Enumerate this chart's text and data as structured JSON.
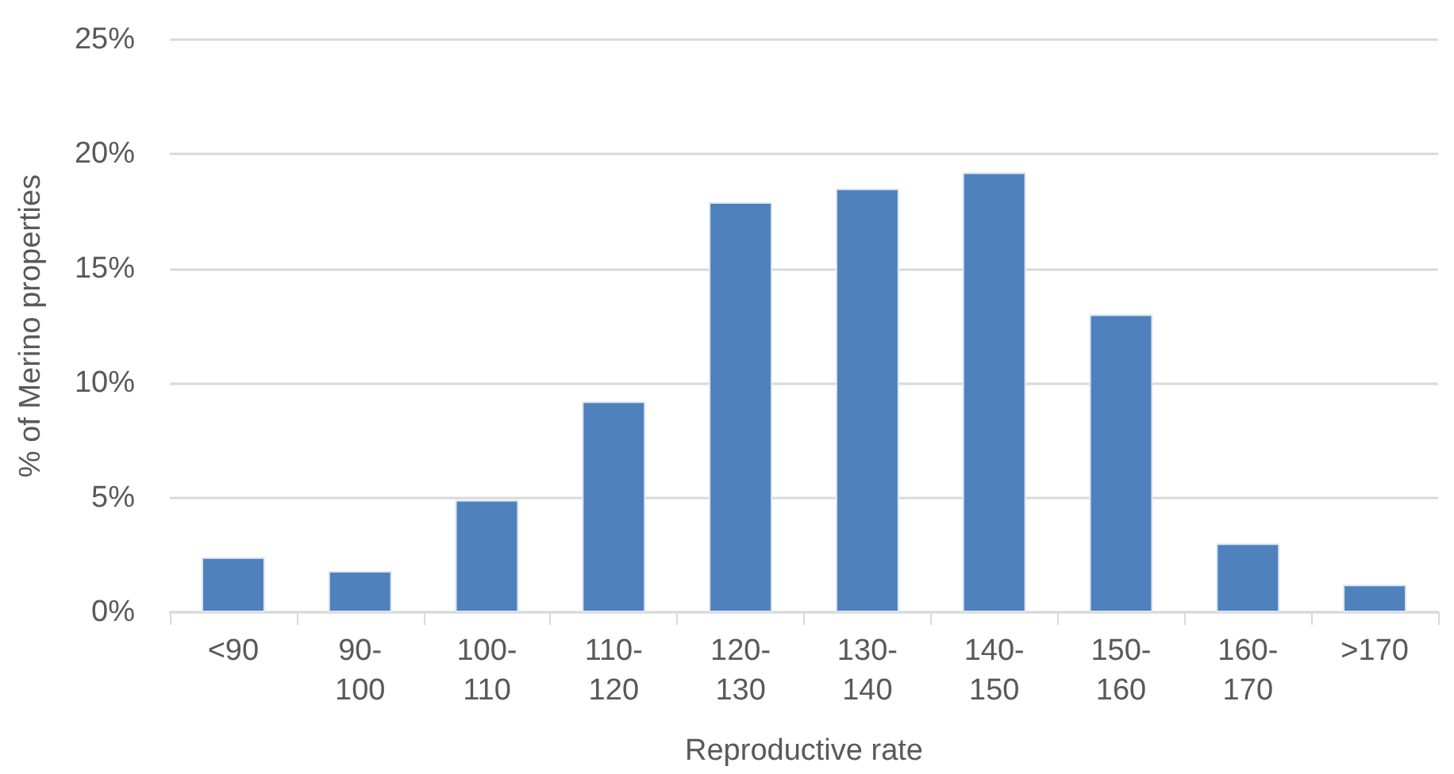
{
  "chart_data": {
    "type": "bar",
    "xlabel": "Reproductive rate",
    "ylabel": "% of Merino properties",
    "categories": [
      "<90",
      "90-100",
      "100-110",
      "110-120",
      "120-130",
      "130-140",
      "140-150",
      "150-160",
      "160-170",
      ">170"
    ],
    "values": [
      2.4,
      1.8,
      4.9,
      9.2,
      17.9,
      18.5,
      19.2,
      13.0,
      3.0,
      1.2
    ],
    "color": "#4f81bd",
    "ylim": [
      0,
      25
    ],
    "yticks": [
      {
        "value": 0,
        "label": "0%"
      },
      {
        "value": 5,
        "label": "5%"
      },
      {
        "value": 10,
        "label": "10%"
      },
      {
        "value": 15,
        "label": "15%"
      },
      {
        "value": 20,
        "label": "20%"
      },
      {
        "value": 25,
        "label": "25%"
      }
    ],
    "grid": "y"
  }
}
